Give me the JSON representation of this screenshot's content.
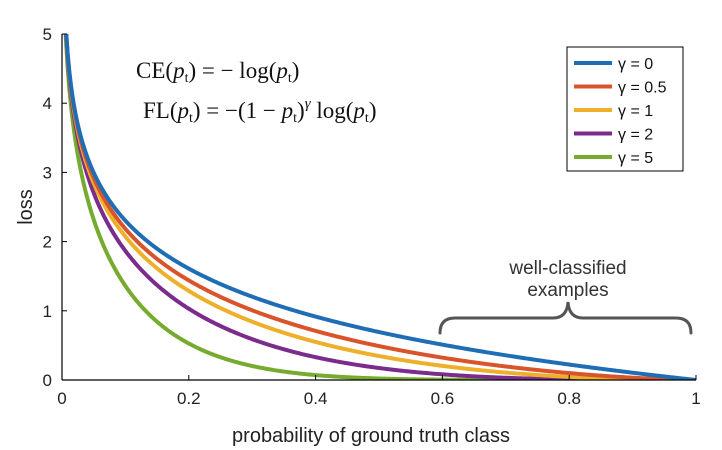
{
  "chart_data": {
    "type": "line",
    "xlabel": "probability of ground truth class",
    "ylabel": "loss",
    "xlim": [
      0,
      1
    ],
    "ylim": [
      0,
      5
    ],
    "xticks": [
      "0",
      "0.2",
      "0.4",
      "0.6",
      "0.8",
      "1"
    ],
    "yticks": [
      "0",
      "1",
      "2",
      "3",
      "4",
      "5"
    ],
    "grid": false,
    "legend_position": "top-right",
    "formulas": {
      "ce": "CE(p_t) = −log(p_t)",
      "fl": "FL(p_t) = −(1 − p_t)^γ log(p_t)"
    },
    "annotation": {
      "line1": "well-classified",
      "line2": "examples",
      "x_range": [
        0.6,
        1.0
      ]
    },
    "series": [
      {
        "name": "γ = 0",
        "gamma": 0,
        "color": "#1f6db5"
      },
      {
        "name": "γ = 0.5",
        "gamma": 0.5,
        "color": "#d9542a"
      },
      {
        "name": "γ = 1",
        "gamma": 1,
        "color": "#eeb02a"
      },
      {
        "name": "γ = 2",
        "gamma": 2,
        "color": "#7a2b8c"
      },
      {
        "name": "γ = 5",
        "gamma": 5,
        "color": "#76ab2f"
      }
    ]
  }
}
